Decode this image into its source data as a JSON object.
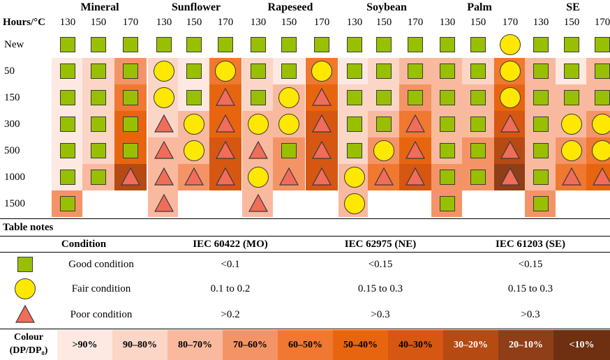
{
  "header": {
    "hours_label": "Hours/°C",
    "oils": [
      "Mineral",
      "Sunflower",
      "Rapeseed",
      "Soybean",
      "Palm",
      "SE"
    ],
    "temps": [
      "130",
      "150",
      "170"
    ]
  },
  "rows": [
    {
      "label": "New",
      "cells": [
        "G",
        "G",
        "G",
        "G",
        "G",
        "G",
        "G",
        "G",
        "G",
        "G",
        "G",
        "G",
        "G",
        "G",
        "F",
        "G",
        "G",
        "G"
      ],
      "colours": [
        "w",
        "w",
        "w",
        "w",
        "w",
        "w",
        "w",
        "w",
        "w",
        "w",
        "w",
        "w",
        "w",
        "w",
        "w",
        "w",
        "w",
        "w"
      ]
    },
    {
      "label": "50",
      "cells": [
        "G",
        "G",
        "G",
        "F",
        "G",
        "F",
        "G",
        "G",
        "F",
        "G",
        "G",
        "G",
        "G",
        "G",
        "F",
        "G",
        "G",
        "G"
      ],
      "colours": [
        "c0",
        "c1",
        "c3",
        "c1",
        "c0",
        "c4",
        "c1",
        "c0",
        "c4",
        "c0",
        "c1",
        "c2",
        "c2",
        "c1",
        "c4",
        "c2",
        "c0",
        "c2"
      ]
    },
    {
      "label": "150",
      "cells": [
        "G",
        "G",
        "G",
        "F",
        "G",
        "P",
        "G",
        "F",
        "P",
        "G",
        "G",
        "G",
        "G",
        "G",
        "F",
        "G",
        "G",
        "G"
      ],
      "colours": [
        "c0",
        "c1",
        "c4",
        "c1",
        "c0",
        "c5",
        "c1",
        "c2",
        "c5",
        "c1",
        "c1",
        "c3",
        "c2",
        "c2",
        "c5",
        "c2",
        "c2",
        "c2"
      ]
    },
    {
      "label": "300",
      "cells": [
        "G",
        "G",
        "G",
        "P",
        "F",
        "P",
        "F",
        "F",
        "P",
        "G",
        "G",
        "P",
        "G",
        "G",
        "P",
        "G",
        "F",
        "F"
      ],
      "colours": [
        "c0",
        "c1",
        "c5",
        "c1",
        "c2",
        "c5",
        "c2",
        "c2",
        "c6",
        "c1",
        "c2",
        "c4",
        "c2",
        "c2",
        "c6",
        "c2",
        "c2",
        "c3"
      ]
    },
    {
      "label": "500",
      "cells": [
        "G",
        "G",
        "G",
        "P",
        "F",
        "P",
        "P",
        "G",
        "P",
        "G",
        "F",
        "P",
        "G",
        "G",
        "P",
        "G",
        "F",
        "F"
      ],
      "colours": [
        "c0",
        "c1",
        "c5",
        "c2",
        "c2",
        "c6",
        "c2",
        "c3",
        "c6",
        "c1",
        "c3",
        "c5",
        "c2",
        "c3",
        "c7",
        "c2",
        "c3",
        "c4"
      ]
    },
    {
      "label": "1000",
      "cells": [
        "G",
        "G",
        "P",
        "P",
        "P",
        "P",
        "F",
        "P",
        "P",
        "F",
        "P",
        "P",
        "G",
        "G",
        "P",
        "G",
        "P",
        "P"
      ],
      "colours": [
        "c0",
        "c2",
        "c7",
        "c2",
        "c3",
        "c6",
        "c2",
        "c3",
        "c6",
        "c2",
        "c4",
        "c6",
        "c3",
        "c3",
        "c8",
        "c2",
        "c4",
        "c5"
      ]
    },
    {
      "label": "1500",
      "cells": [
        "G",
        "",
        "",
        "P",
        "",
        "",
        "P",
        "",
        "",
        "F",
        "",
        "",
        "G",
        "",
        "",
        "G",
        "",
        ""
      ],
      "colours": [
        "c3",
        "w",
        "w",
        "c2",
        "w",
        "w",
        "c2",
        "w",
        "w",
        "c2",
        "w",
        "w",
        "c3",
        "w",
        "w",
        "c3",
        "w",
        "w"
      ]
    }
  ],
  "notes": {
    "title": "Table notes",
    "condition_header": "Condition",
    "standards": [
      "IEC 60422 (MO)",
      "IEC 62975 (NE)",
      "IEC 61203 (SE)"
    ],
    "items": [
      {
        "symbol": "G",
        "label": "Good condition",
        "values": [
          "<0.1",
          "<0.15",
          "<0.15"
        ]
      },
      {
        "symbol": "F",
        "label": "Fair condition",
        "values": [
          "0.1 to 0.2",
          "0.15 to 0.3",
          "0.15 to 0.3"
        ]
      },
      {
        "symbol": "P",
        "label": "Poor condition",
        "values": [
          ">0.2",
          ">0.3",
          ">0.3"
        ]
      }
    ]
  },
  "scale": {
    "label_line1": "Colour",
    "label_line2": "(DP/DP₀)",
    "bins": [
      ">90%",
      "90–80%",
      "80–70%",
      "70–60%",
      "60–50%",
      "50–40%",
      "40–30%",
      "30–20%",
      "20–10%",
      "<10%"
    ]
  },
  "colors": {
    "w": "#ffffff",
    "c0": "#fde9e2",
    "c1": "#fbd5c6",
    "c2": "#f9b99e",
    "c3": "#f49466",
    "c4": "#f07830",
    "c5": "#e8650f",
    "c6": "#d55712",
    "c7": "#b54a12",
    "c8": "#8f3e17",
    "c9": "#6e3010",
    "good": "#99c000",
    "fair": "#ffe800",
    "poor": "#f26c5a"
  }
}
